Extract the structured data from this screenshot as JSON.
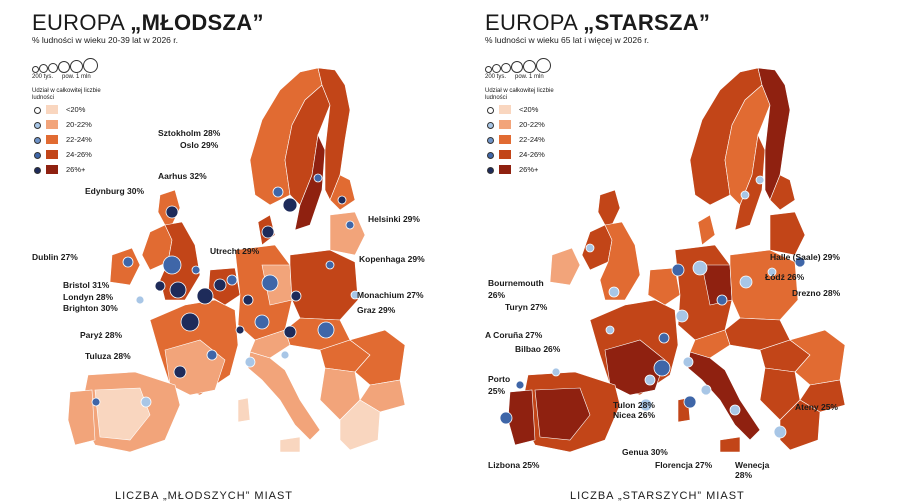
{
  "colors": {
    "c1": "#f9d6bf",
    "c2": "#f2a47a",
    "c3": "#e16b32",
    "c4": "#c24518",
    "c5": "#8f2110",
    "big_dark": "#1e2b5a",
    "big_mid": "#3f66a8",
    "big_light": "#a8c6e6",
    "border": "#ffffff",
    "nodata": "#ffffff"
  },
  "young": {
    "title_light": "EUROPA ",
    "title_bold": "„MŁODSZA”",
    "subtitle": "% ludności w wieku 20-39 lat w 2026 r.",
    "size_legend": {
      "small": "200 tys.",
      "large": "pow. 1 mln"
    },
    "share_legend": {
      "header": "Udział w całkowitej liczbie ludności",
      "items": [
        "<20%",
        "20-22%",
        "22-24%",
        "24-26%",
        "26%+"
      ]
    },
    "cities": {
      "sztokholm": "Sztokholm 28%",
      "oslo": "Oslo 29%",
      "aarhus": "Aarhus 32%",
      "edynburg": "Edynburg 30%",
      "helsinki": "Helsinki 29%",
      "dublin": "Dublin 27%",
      "utrecht": "Utrecht 29%",
      "kopenhaga": "Kopenhaga 29%",
      "bristol": "Bristol 31%",
      "londyn": "Londyn 28%",
      "brighton": "Brighton 30%",
      "monachium": "Monachium 27%",
      "graz": "Graz 29%",
      "paryz": "Paryż 28%",
      "tuluza": "Tuluza 28%"
    },
    "footer": "LICZBA „MŁODSZYCH” MIAST"
  },
  "old": {
    "title_light": "EUROPA ",
    "title_bold": "„STARSZA”",
    "subtitle": "% ludności w wieku 65 lat i więcej w 2026 r.",
    "size_legend": {
      "small": "200 tys.",
      "large": "pow. 1 mln"
    },
    "share_legend": {
      "header": "Udział w całkowitej liczbie ludności",
      "items": [
        "<20%",
        "20-22%",
        "22-24%",
        "24-26%",
        "26%+"
      ]
    },
    "cities": {
      "halle": "Halle (Saale) 29%",
      "lodz": "Łódź 26%",
      "drezno": "Drezno 28%",
      "bournemouth_1": "Bournemouth",
      "bournemouth_2": "26%",
      "turyn": "Turyn 27%",
      "acoruna": "A Coruña 27%",
      "bilbao": "Bilbao 26%",
      "porto_1": "Porto",
      "porto_2": "25%",
      "tulon": "Tulon 28%",
      "nicea": "Nicea 26%",
      "ateny": "Ateny 25%",
      "genua": "Genua 30%",
      "lizbona": "Lizbona 25%",
      "florencja": "Florencja 27%",
      "wenecja_1": "Wenecja",
      "wenecja_2": "28%"
    },
    "footer": "LICZBA „STARSZYCH” MIAST"
  }
}
